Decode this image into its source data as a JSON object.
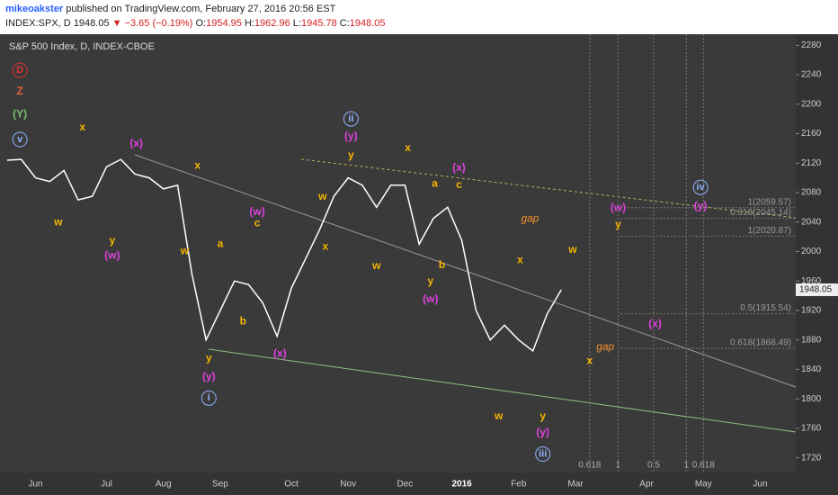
{
  "header": {
    "author": "mikeoakster",
    "published": "published on TradingView.com, February 27, 2016 20:56 EST",
    "symbol": "INDEX:SPX, D",
    "price": "1948.05",
    "change": "▼ −3.65 (−0.19%)",
    "o_label": "O:",
    "o": "1954.95",
    "h_label": "H:",
    "h": "1962.96",
    "l_label": "L:",
    "l": "1945.78",
    "c_label": "C:",
    "c": "1948.05"
  },
  "chart_data": {
    "type": "line",
    "title": "S&P 500 Index, D, INDEX-CBOE",
    "color": "#ffffff",
    "categories": [
      null,
      null,
      "Jun",
      null,
      null,
      null,
      null,
      "Jul",
      null,
      null,
      null,
      "Aug",
      null,
      null,
      null,
      "Sep",
      null,
      null,
      null,
      null,
      "Oct",
      null,
      null,
      null,
      "Nov",
      null,
      null,
      null,
      "Dec",
      null,
      null,
      null,
      "2016",
      null,
      null,
      null,
      "Feb",
      null,
      null,
      null,
      "Mar",
      null,
      null,
      null,
      null,
      "Apr",
      null,
      null,
      null,
      "May",
      null,
      null,
      null,
      "Jun",
      null,
      null
    ],
    "values": [
      2124,
      2125,
      2100,
      2095,
      2110,
      2070,
      2075,
      2115,
      2125,
      2105,
      2100,
      2085,
      2090,
      1970,
      1880,
      1920,
      1960,
      1955,
      1930,
      1885,
      1950,
      1990,
      2030,
      2075,
      2100,
      2090,
      2060,
      2090,
      2090,
      2010,
      2045,
      2060,
      2015,
      1920,
      1880,
      1900,
      1880,
      1865,
      1915,
      1948.05,
      null,
      null,
      null,
      null,
      null,
      null,
      null,
      null,
      null,
      null,
      null,
      null,
      null,
      null,
      null,
      null
    ],
    "ylim": [
      1700,
      2295
    ],
    "yticks": [
      1720,
      1760,
      1800,
      1840,
      1880,
      1920,
      1960,
      2000,
      2040,
      2080,
      2120,
      2160,
      2200,
      2240,
      2280
    ],
    "levels": [
      {
        "value": 2059.57,
        "label": "1(2059.57)"
      },
      {
        "value": 2045.14,
        "label": "0.618(2045.14)"
      },
      {
        "value": 2020.87,
        "label": "1(2020.87)"
      },
      {
        "value": 1915.54,
        "label": "0.5(1915.54)"
      },
      {
        "value": 1868.49,
        "label": "0.618(1868.49)"
      }
    ],
    "time_fibs": [
      {
        "x": 41,
        "label": "0.618"
      },
      {
        "x": 43,
        "label": "1"
      },
      {
        "x": 45.5,
        "label": "0.5"
      },
      {
        "x": 47.8,
        "label": "1"
      },
      {
        "x": 49,
        "label": "0.618"
      }
    ],
    "annotations": [
      {
        "text": "D",
        "x": 0.9,
        "y": 2246,
        "color": "#e03030",
        "circle": true
      },
      {
        "text": "Z",
        "x": 0.9,
        "y": 2217,
        "color": "#e06040"
      },
      {
        "text": "(Y)",
        "x": 0.9,
        "y": 2186,
        "color": "#7fbf6f"
      },
      {
        "text": "v",
        "x": 0.9,
        "y": 2152,
        "color": "#8db4ff",
        "circle": true
      },
      {
        "text": "x",
        "x": 5.3,
        "y": 2168,
        "color": "#f5b400"
      },
      {
        "text": "(x)",
        "x": 9.1,
        "y": 2146,
        "color": "#e040e0"
      },
      {
        "text": "ii",
        "x": 24.2,
        "y": 2180,
        "color": "#8db4ff",
        "circle": true
      },
      {
        "text": "(y)",
        "x": 24.2,
        "y": 2156,
        "color": "#e040e0"
      },
      {
        "text": "y",
        "x": 24.2,
        "y": 2130,
        "color": "#f5b400"
      },
      {
        "text": "x",
        "x": 28.2,
        "y": 2140,
        "color": "#f5b400"
      },
      {
        "text": "(x)",
        "x": 31.8,
        "y": 2113,
        "color": "#e040e0"
      },
      {
        "text": "a",
        "x": 30.1,
        "y": 2092,
        "color": "#f5b400"
      },
      {
        "text": "c",
        "x": 31.8,
        "y": 2090,
        "color": "#f5b400"
      },
      {
        "text": "w",
        "x": 22.2,
        "y": 2074,
        "color": "#f5b400"
      },
      {
        "text": "x",
        "x": 13.4,
        "y": 2116,
        "color": "#f5b400"
      },
      {
        "text": "w",
        "x": 12.5,
        "y": 2000,
        "color": "#f5b400"
      },
      {
        "text": "w",
        "x": 3.6,
        "y": 2039,
        "color": "#f5b400"
      },
      {
        "text": "y",
        "x": 7.4,
        "y": 2014,
        "color": "#f5b400"
      },
      {
        "text": "(w)",
        "x": 7.4,
        "y": 1994,
        "color": "#e040e0"
      },
      {
        "text": "a",
        "x": 15,
        "y": 2010,
        "color": "#f5b400"
      },
      {
        "text": "(w)",
        "x": 17.6,
        "y": 2053,
        "color": "#e040e0"
      },
      {
        "text": "c",
        "x": 17.6,
        "y": 2038,
        "color": "#f5b400"
      },
      {
        "text": "b",
        "x": 16.6,
        "y": 1905,
        "color": "#f5b400"
      },
      {
        "text": "y",
        "x": 14.2,
        "y": 1855,
        "color": "#f5b400"
      },
      {
        "text": "(y)",
        "x": 14.2,
        "y": 1830,
        "color": "#e040e0"
      },
      {
        "text": "i",
        "x": 14.2,
        "y": 1801,
        "color": "#8db4ff",
        "circle": true
      },
      {
        "text": "(x)",
        "x": 19.2,
        "y": 1861,
        "color": "#e040e0"
      },
      {
        "text": "x",
        "x": 22.4,
        "y": 2006,
        "color": "#f5b400"
      },
      {
        "text": "w",
        "x": 26,
        "y": 1980,
        "color": "#f5b400"
      },
      {
        "text": "b",
        "x": 30.6,
        "y": 1981,
        "color": "#f5b400"
      },
      {
        "text": "y",
        "x": 29.8,
        "y": 1959,
        "color": "#f5b400"
      },
      {
        "text": "(w)",
        "x": 29.8,
        "y": 1935,
        "color": "#e040e0"
      },
      {
        "text": "x",
        "x": 36.1,
        "y": 1988,
        "color": "#f5b400"
      },
      {
        "text": "w",
        "x": 34.6,
        "y": 1776,
        "color": "#f5b400"
      },
      {
        "text": "y",
        "x": 37.7,
        "y": 1776,
        "color": "#f5b400"
      },
      {
        "text": "(y)",
        "x": 37.7,
        "y": 1754,
        "color": "#e040e0"
      },
      {
        "text": "iii",
        "x": 37.7,
        "y": 1725,
        "color": "#8db4ff",
        "circle": true
      },
      {
        "text": "w",
        "x": 39.8,
        "y": 2002,
        "color": "#f5b400"
      },
      {
        "text": "x",
        "x": 41,
        "y": 1851,
        "color": "#f5b400"
      },
      {
        "text": "(w)",
        "x": 43,
        "y": 2059,
        "color": "#e040e0"
      },
      {
        "text": "y",
        "x": 43,
        "y": 2036,
        "color": "#f5b400"
      },
      {
        "text": "(x)",
        "x": 45.6,
        "y": 1901,
        "color": "#e040e0"
      },
      {
        "text": "iv",
        "x": 48.8,
        "y": 2087,
        "color": "#8db4ff",
        "circle": true
      },
      {
        "text": "(y)",
        "x": 48.8,
        "y": 2061,
        "color": "#e040e0"
      },
      {
        "text": "gap",
        "x": 36.8,
        "y": 2044,
        "color": "#f09030"
      },
      {
        "text": "gap",
        "x": 42.1,
        "y": 1870,
        "color": "#f09030"
      }
    ]
  }
}
